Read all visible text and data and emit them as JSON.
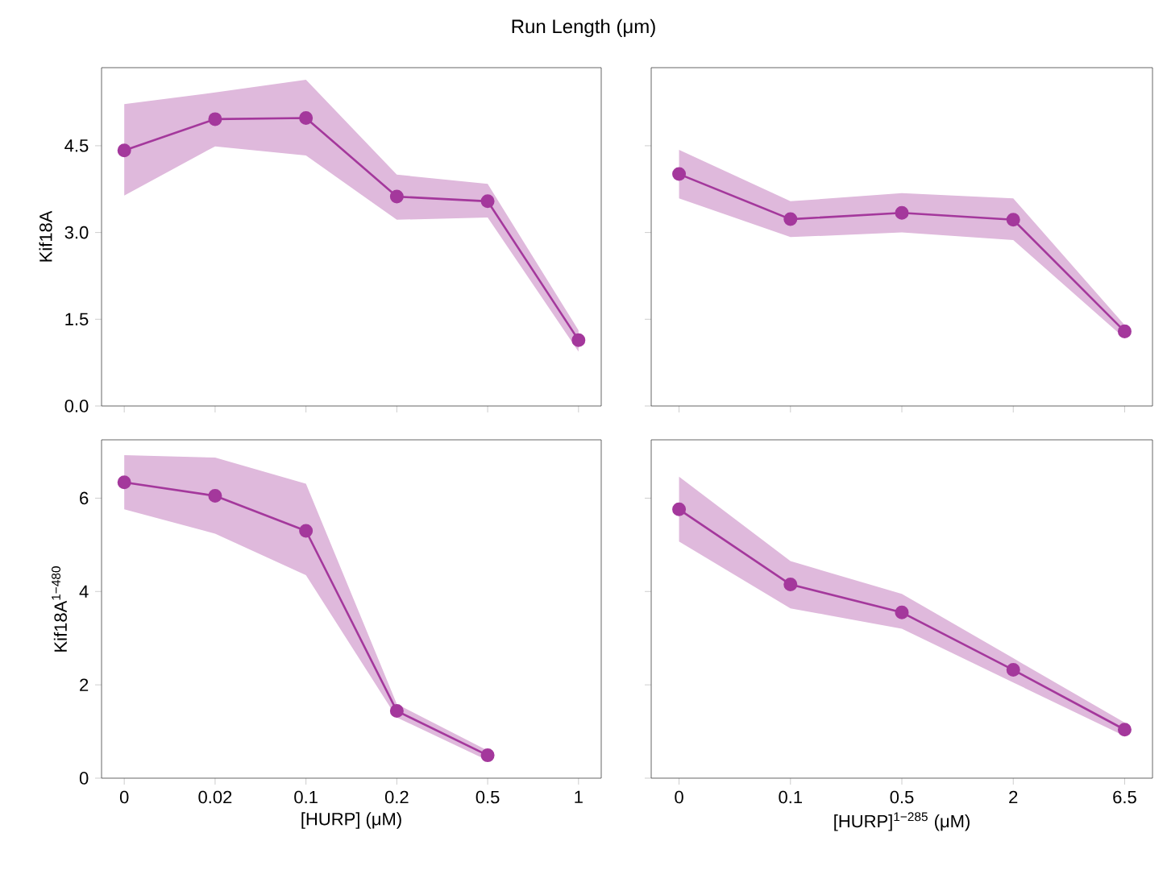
{
  "chart_data": [
    {
      "type": "line",
      "title": "Run Length (μm)",
      "ylabel": "Kif18A",
      "categories": [
        "0",
        "0.02",
        "0.1",
        "0.2",
        "0.5",
        "1"
      ],
      "ylim": [
        0,
        5.85
      ],
      "yticks": [
        {
          "value": 0,
          "label": "0.0"
        },
        {
          "value": 1.5,
          "label": "1.5"
        },
        {
          "value": 3,
          "label": "3.0"
        },
        {
          "value": 4.5,
          "label": "4.5"
        }
      ],
      "tick_labels": "y",
      "marker": "circle",
      "line_style": "solid",
      "series": [
        {
          "color": "#a4389c",
          "values": [
            4.42,
            4.96,
            4.98,
            3.62,
            3.54,
            1.14
          ],
          "lower": [
            3.64,
            4.49,
            4.33,
            3.22,
            3.26,
            0.94
          ],
          "upper": [
            5.22,
            5.42,
            5.64,
            4.0,
            3.84,
            1.31
          ]
        }
      ]
    },
    {
      "type": "line",
      "categories": [
        "0",
        "0.1",
        "0.5",
        "2",
        "6.5"
      ],
      "ylim": [
        0,
        5.85
      ],
      "yticks": [
        {
          "value": 0,
          "label": null
        },
        {
          "value": 1.5,
          "label": null
        },
        {
          "value": 3,
          "label": null
        },
        {
          "value": 4.5,
          "label": null
        }
      ],
      "tick_labels": false,
      "marker": "circle",
      "line_style": "solid",
      "series": [
        {
          "color": "#a4389c",
          "values": [
            4.01,
            3.23,
            3.34,
            3.22,
            1.29
          ],
          "lower": [
            3.59,
            2.92,
            3.0,
            2.87,
            1.17
          ],
          "upper": [
            4.43,
            3.54,
            3.68,
            3.59,
            1.4
          ]
        }
      ]
    },
    {
      "type": "line",
      "xlabel": "[HURP] (μM)",
      "ylabel": "Kif18A$^{1−480}$",
      "categories": [
        "0",
        "0.02",
        "0.1",
        "0.2",
        "0.5",
        "1"
      ],
      "ylim": [
        0,
        7.25
      ],
      "yticks": [
        0,
        2,
        4,
        6
      ],
      "marker": "circle",
      "line_style": "solid",
      "series": [
        {
          "color": "#a4389c",
          "values": [
            6.34,
            6.05,
            5.3,
            1.44,
            0.49,
            null
          ],
          "lower": [
            5.76,
            5.24,
            4.35,
            1.3,
            0.38,
            null
          ],
          "upper": [
            6.92,
            6.87,
            6.31,
            1.59,
            0.59,
            null
          ]
        }
      ]
    },
    {
      "type": "line",
      "xlabel": "[HURP]$^{1−285}$ (μM)",
      "categories": [
        "0",
        "0.1",
        "0.5",
        "2",
        "6.5"
      ],
      "ylim": [
        0,
        7.25
      ],
      "yticks": [
        {
          "value": 0,
          "label": null
        },
        {
          "value": 2,
          "label": null
        },
        {
          "value": 4,
          "label": null
        },
        {
          "value": 6,
          "label": null
        }
      ],
      "tick_labels": "x",
      "marker": "circle",
      "line_style": "solid",
      "series": [
        {
          "color": "#a4389c",
          "values": [
            5.76,
            4.15,
            3.55,
            2.32,
            1.04
          ],
          "lower": [
            5.07,
            3.64,
            3.2,
            2.05,
            0.9
          ],
          "upper": [
            6.46,
            4.65,
            3.95,
            2.57,
            1.19
          ]
        }
      ]
    }
  ]
}
